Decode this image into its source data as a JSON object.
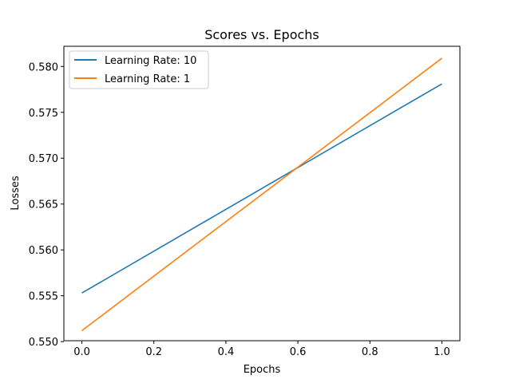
{
  "chart_data": {
    "type": "line",
    "title": "Scores vs. Epochs",
    "xlabel": "Epochs",
    "ylabel": "Losses",
    "xlim": [
      -0.05,
      1.05
    ],
    "ylim": [
      0.5501,
      0.5822
    ],
    "x": [
      0.0,
      1.0
    ],
    "xticks": [
      0.0,
      0.2,
      0.4,
      0.6,
      0.8,
      1.0
    ],
    "xtick_labels": [
      "0.0",
      "0.2",
      "0.4",
      "0.6",
      "0.8",
      "1.0"
    ],
    "yticks": [
      0.55,
      0.555,
      0.56,
      0.565,
      0.57,
      0.575,
      0.58
    ],
    "ytick_labels": [
      "0.550",
      "0.555",
      "0.560",
      "0.565",
      "0.570",
      "0.575",
      "0.580"
    ],
    "grid": false,
    "legend_position": "top-left",
    "series": [
      {
        "name": "Learning Rate: 10",
        "color": "#1f77b4",
        "values": [
          0.5553,
          0.5781
        ]
      },
      {
        "name": "Learning Rate: 1",
        "color": "#ff7f0e",
        "values": [
          0.5512,
          0.5809
        ]
      }
    ]
  }
}
